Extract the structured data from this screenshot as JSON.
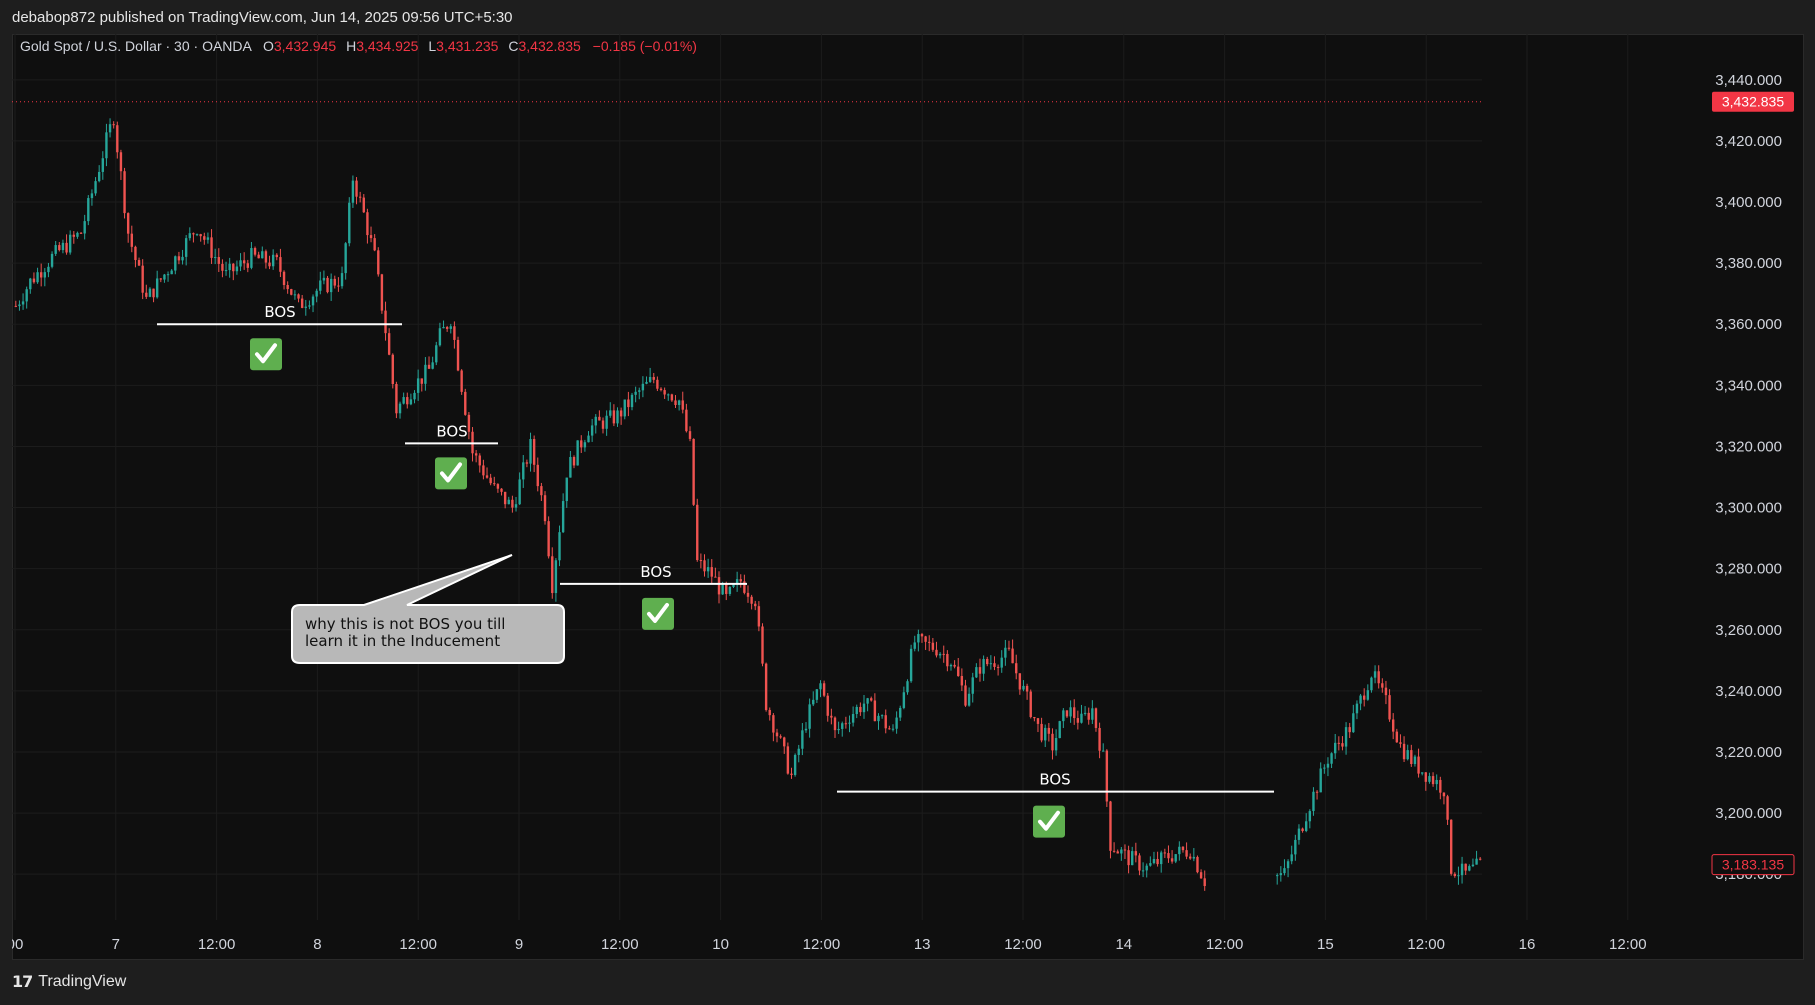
{
  "header": {
    "published_text": "debabop872 published on TradingView.com, Jun 14, 2025 09:56 UTC+5:30"
  },
  "legend": {
    "symbol_text": "Gold Spot / U.S. Dollar · 30 · OANDA",
    "o_label": "O",
    "o_value": "3,432.945",
    "h_label": "H",
    "h_value": "3,434.925",
    "l_label": "L",
    "l_value": "3,431.235",
    "c_label": "C",
    "c_value": "3,432.835",
    "change_text": "−0.185 (−0.01%)"
  },
  "price_badges": {
    "last_price": "3,432.835",
    "lower_price": "3,183.135"
  },
  "footer": {
    "brand_mark": "17",
    "brand_name": "TradingView"
  },
  "colors": {
    "up": "#26a69a",
    "down": "#ef5350",
    "background": "#0f0f0f",
    "badge": "#f23645",
    "check": "#5faf4f"
  },
  "chart_data": {
    "type": "candlestick",
    "title": "Gold Spot / U.S. Dollar · 30 · OANDA",
    "xlabel": "",
    "ylabel": "",
    "ylim": [
      3165,
      3455
    ],
    "grid": true,
    "y_ticks": [
      "3,440.000",
      "3,420.000",
      "3,400.000",
      "3,380.000",
      "3,360.000",
      "3,340.000",
      "3,320.000",
      "3,300.000",
      "3,280.000",
      "3,260.000",
      "3,240.000",
      "3,220.000",
      "3,200.000",
      "3,180.000"
    ],
    "x_ticks": [
      "00",
      "7",
      "12:00",
      "8",
      "12:00",
      "9",
      "12:00",
      "10",
      "12:00",
      "13",
      "12:00",
      "14",
      "12:00",
      "15",
      "12:00",
      "16",
      "12:00"
    ],
    "price_path": [
      [
        0,
        3366
      ],
      [
        4,
        3374
      ],
      [
        10,
        3382
      ],
      [
        18,
        3390
      ],
      [
        25,
        3420
      ],
      [
        27,
        3428
      ],
      [
        28,
        3418
      ],
      [
        31,
        3390
      ],
      [
        36,
        3368
      ],
      [
        42,
        3378
      ],
      [
        50,
        3392
      ],
      [
        58,
        3376
      ],
      [
        65,
        3382
      ],
      [
        72,
        3380
      ],
      [
        78,
        3366
      ],
      [
        84,
        3372
      ],
      [
        90,
        3375
      ],
      [
        93,
        3408
      ],
      [
        96,
        3396
      ],
      [
        99,
        3382
      ],
      [
        102,
        3358
      ],
      [
        105,
        3332
      ],
      [
        110,
        3340
      ],
      [
        114,
        3345
      ],
      [
        117,
        3356
      ],
      [
        120,
        3362
      ],
      [
        123,
        3340
      ],
      [
        126,
        3318
      ],
      [
        132,
        3306
      ],
      [
        137,
        3300
      ],
      [
        142,
        3320
      ],
      [
        146,
        3298
      ],
      [
        148,
        3275
      ],
      [
        152,
        3312
      ],
      [
        158,
        3326
      ],
      [
        166,
        3330
      ],
      [
        172,
        3338
      ],
      [
        176,
        3342
      ],
      [
        180,
        3338
      ],
      [
        183,
        3335
      ],
      [
        186,
        3320
      ],
      [
        188,
        3282
      ],
      [
        192,
        3278
      ],
      [
        196,
        3270
      ],
      [
        200,
        3276
      ],
      [
        204,
        3270
      ],
      [
        207,
        3236
      ],
      [
        210,
        3226
      ],
      [
        214,
        3212
      ],
      [
        218,
        3230
      ],
      [
        222,
        3242
      ],
      [
        226,
        3226
      ],
      [
        230,
        3232
      ],
      [
        234,
        3236
      ],
      [
        238,
        3232
      ],
      [
        242,
        3226
      ],
      [
        248,
        3256
      ],
      [
        254,
        3254
      ],
      [
        258,
        3250
      ],
      [
        262,
        3238
      ],
      [
        266,
        3248
      ],
      [
        270,
        3250
      ],
      [
        274,
        3252
      ],
      [
        278,
        3240
      ],
      [
        282,
        3228
      ],
      [
        286,
        3222
      ],
      [
        290,
        3234
      ],
      [
        294,
        3230
      ],
      [
        297,
        3234
      ],
      [
        300,
        3218
      ],
      [
        302,
        3190
      ],
      [
        306,
        3186
      ],
      [
        312,
        3182
      ],
      [
        318,
        3186
      ],
      [
        324,
        3188
      ],
      [
        328,
        3178
      ],
      [
        340,
        3178
      ],
      [
        350,
        3180
      ],
      [
        356,
        3200
      ],
      [
        362,
        3218
      ],
      [
        368,
        3228
      ],
      [
        374,
        3246
      ],
      [
        378,
        3236
      ],
      [
        382,
        3222
      ],
      [
        386,
        3216
      ],
      [
        390,
        3212
      ],
      [
        394,
        3208
      ],
      [
        396,
        3182
      ],
      [
        400,
        3180
      ],
      [
        404,
        3183
      ]
    ],
    "annotations": [
      {
        "type": "bos",
        "label": "BOS",
        "level": 3360,
        "check": true
      },
      {
        "type": "bos",
        "label": "BOS",
        "level": 3321,
        "check": true
      },
      {
        "type": "bos",
        "label": "BOS",
        "level": 3275,
        "check": true
      },
      {
        "type": "bos",
        "label": "BOS",
        "level": 3207,
        "check": true
      },
      {
        "type": "callout",
        "lines": [
          "why this is not BOS you till",
          "learn it in the Inducement"
        ]
      }
    ]
  }
}
